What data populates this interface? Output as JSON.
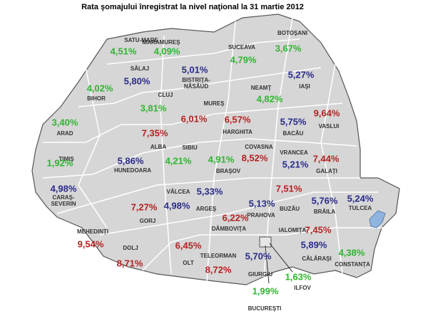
{
  "title": "Rata şomajului înregistrat la nivel naţional la 31 martie 2012",
  "counties": [
    {
      "name": "SATU-MARE",
      "value": "4,51%",
      "color": "#2fb52f"
    },
    {
      "name": "MARAMUREŞ",
      "value": "4,09%",
      "color": "#2fb52f"
    },
    {
      "name": "SUCEAVA",
      "value": "4,79%",
      "color": "#2fb52f"
    },
    {
      "name": "BOTOŞANI",
      "value": "3,67%",
      "color": "#2fb52f"
    },
    {
      "name": "SĂLAJ",
      "value": "5,80%",
      "color": "#2a2a8c"
    },
    {
      "name": "BISTRIŢA-NĂSĂUD",
      "value": "5,01%",
      "color": "#2a2a8c"
    },
    {
      "name": "NEAMŢ",
      "value": "4,82%",
      "color": "#2fb52f"
    },
    {
      "name": "IAŞI",
      "value": "5,27%",
      "color": "#2a2a8c"
    },
    {
      "name": "BIHOR",
      "value": "4,02%",
      "color": "#2fb52f"
    },
    {
      "name": "CLUJ",
      "value": "3,81%",
      "color": "#2fb52f"
    },
    {
      "name": "MUREŞ",
      "value": "6,01%",
      "color": "#b22222"
    },
    {
      "name": "HARGHITA",
      "value": "6,57%",
      "color": "#b22222"
    },
    {
      "name": "BACĂU",
      "value": "5,75%",
      "color": "#2a2a8c"
    },
    {
      "name": "VASLUI",
      "value": "9,64%",
      "color": "#b22222"
    },
    {
      "name": "ARAD",
      "value": "3,40%",
      "color": "#2fb52f"
    },
    {
      "name": "ALBA",
      "value": "7,35%",
      "color": "#b22222"
    },
    {
      "name": "SIBIU",
      "value": "4,21%",
      "color": "#2fb52f"
    },
    {
      "name": "COVASNA",
      "value": "8,52%",
      "color": "#b22222"
    },
    {
      "name": "BRAŞOV",
      "value": "4,91%",
      "color": "#2fb52f"
    },
    {
      "name": "VRANCEA",
      "value": "5,21%",
      "color": "#2a2a8c"
    },
    {
      "name": "GALAŢI",
      "value": "7,44%",
      "color": "#b22222"
    },
    {
      "name": "TIMIŞ",
      "value": "1,92%",
      "color": "#2fb52f"
    },
    {
      "name": "HUNEDOARA",
      "value": "5,86%",
      "color": "#2a2a8c"
    },
    {
      "name": "CARAŞ-SEVERIN",
      "value": "4,98%",
      "color": "#2a2a8c"
    },
    {
      "name": "VÂLCEA",
      "value": "4,98%",
      "color": "#2a2a8c"
    },
    {
      "name": "ARGEŞ",
      "value": "5,33%",
      "color": "#2a2a8c"
    },
    {
      "name": "PRAHOVA",
      "value": "5,13%",
      "color": "#2a2a8c"
    },
    {
      "name": "BUZĂU",
      "value": "7,51%",
      "color": "#b22222"
    },
    {
      "name": "BRĂILA",
      "value": "5,76%",
      "color": "#2a2a8c"
    },
    {
      "name": "TULCEA",
      "value": "5,24%",
      "color": "#2a2a8c"
    },
    {
      "name": "GORJ",
      "value": "7,27%",
      "color": "#b22222"
    },
    {
      "name": "MEHEDINŢI",
      "value": "9,54%",
      "color": "#b22222"
    },
    {
      "name": "DOLJ",
      "value": "8,71%",
      "color": "#b22222"
    },
    {
      "name": "OLT",
      "value": "6,45%",
      "color": "#b22222"
    },
    {
      "name": "DÂMBOVIŢA",
      "value": "6,22%",
      "color": "#b22222"
    },
    {
      "name": "IALOMIŢA",
      "value": "7,45%",
      "color": "#b22222"
    },
    {
      "name": "TELEORMAN",
      "value": "8,72%",
      "color": "#b22222"
    },
    {
      "name": "GIURGIU",
      "value": "5,70%",
      "color": "#2a2a8c"
    },
    {
      "name": "CĂLĂRAŞI",
      "value": "5,89%",
      "color": "#2a2a8c"
    },
    {
      "name": "CONSTANŢA",
      "value": "4,38%",
      "color": "#2fb52f"
    },
    {
      "name": "ILFOV",
      "value": "1,63%",
      "color": "#2fb52f"
    },
    {
      "name": "BUCUREŞTI",
      "value": "1,99%",
      "color": "#2fb52f"
    }
  ]
}
